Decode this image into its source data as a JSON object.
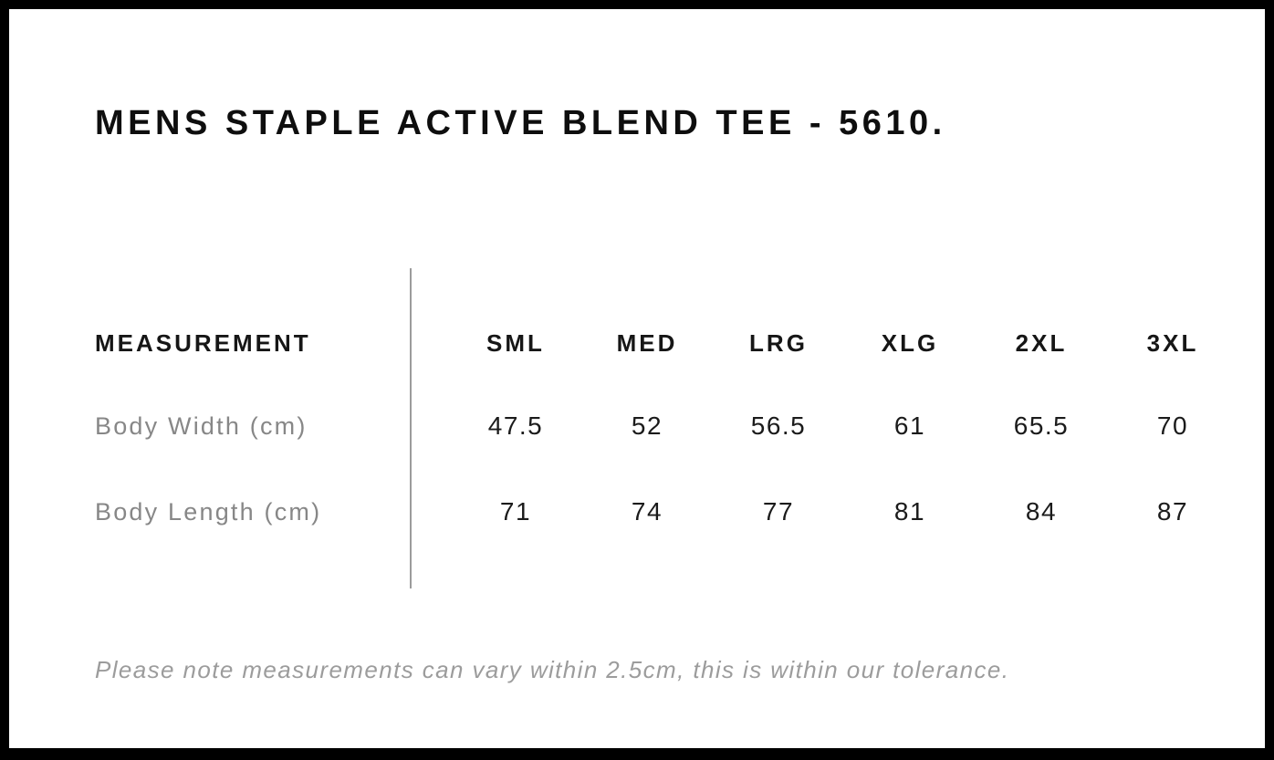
{
  "chart_data": {
    "type": "table",
    "title": "MENS STAPLE ACTIVE BLEND TEE - 5610.",
    "row_header": "MEASUREMENT",
    "columns": [
      "SML",
      "MED",
      "LRG",
      "XLG",
      "2XL",
      "3XL"
    ],
    "rows": [
      {
        "label": "Body Width (cm)",
        "values": [
          "47.5",
          "52",
          "56.5",
          "61",
          "65.5",
          "70"
        ]
      },
      {
        "label": "Body Length (cm)",
        "values": [
          "71",
          "74",
          "77",
          "81",
          "84",
          "87"
        ]
      }
    ],
    "note": "Please note measurements can vary within 2.5cm, this is within our tolerance."
  },
  "colors": {
    "frame_border": "#000000",
    "background": "#ffffff",
    "title_text": "#0e0e0e",
    "header_text": "#161616",
    "row_label_text": "#878787",
    "value_text": "#1b1b1b",
    "divider": "#9c9c9c",
    "note_text": "#9c9c9c"
  }
}
